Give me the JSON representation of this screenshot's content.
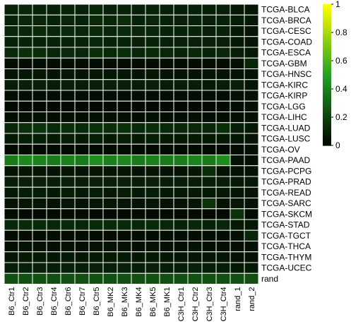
{
  "chart_data": {
    "type": "heatmap",
    "rows": [
      "TCGA-BLCA",
      "TCGA-BRCA",
      "TCGA-CESC",
      "TCGA-COAD",
      "TCGA-ESCA",
      "TCGA-GBM",
      "TCGA-HNSC",
      "TCGA-KIRC",
      "TCGA-KIRP",
      "TCGA-LGG",
      "TCGA-LIHC",
      "TCGA-LUAD",
      "TCGA-LUSC",
      "TCGA-OV",
      "TCGA-PAAD",
      "TCGA-PCPG",
      "TCGA-PRAD",
      "TCGA-READ",
      "TCGA-SARC",
      "TCGA-SKCM",
      "TCGA-STAD",
      "TCGA-TGCT",
      "TCGA-THCA",
      "TCGA-THYM",
      "TCGA-UCEC",
      "rand"
    ],
    "columns": [
      "B6_Ctr1",
      "B6_Ctr2",
      "B6_Ctr3",
      "B6_Ctr4",
      "B6_Ctr6",
      "B6_Ctr7",
      "B6_Ctr5",
      "B6_MK2",
      "B6_MK3",
      "B6_MK4",
      "B6_MK5",
      "B6_MK1",
      "C3H_Ctr1",
      "C3H_Ctr2",
      "C3H_Ctr3",
      "C3H_Ctr4",
      "rand_1",
      "rand_2"
    ],
    "values": [
      [
        0.1,
        0.12,
        0.11,
        0.1,
        0.11,
        0.1,
        0.12,
        0.1,
        0.11,
        0.1,
        0.11,
        0.1,
        0.09,
        0.1,
        0.09,
        0.1,
        0.08,
        0.07
      ],
      [
        0.11,
        0.12,
        0.12,
        0.11,
        0.12,
        0.11,
        0.13,
        0.12,
        0.14,
        0.11,
        0.12,
        0.11,
        0.1,
        0.11,
        0.1,
        0.11,
        0.09,
        0.08
      ],
      [
        0.12,
        0.12,
        0.13,
        0.12,
        0.13,
        0.12,
        0.13,
        0.12,
        0.13,
        0.12,
        0.12,
        0.11,
        0.11,
        0.11,
        0.1,
        0.11,
        0.08,
        0.07
      ],
      [
        0.1,
        0.11,
        0.11,
        0.1,
        0.11,
        0.11,
        0.12,
        0.11,
        0.11,
        0.1,
        0.11,
        0.1,
        0.1,
        0.1,
        0.1,
        0.1,
        0.08,
        0.07
      ],
      [
        0.13,
        0.14,
        0.14,
        0.12,
        0.13,
        0.12,
        0.14,
        0.13,
        0.14,
        0.12,
        0.13,
        0.12,
        0.11,
        0.12,
        0.11,
        0.12,
        0.09,
        0.08
      ],
      [
        0.04,
        0.04,
        0.04,
        0.04,
        0.04,
        0.04,
        0.04,
        0.04,
        0.04,
        0.04,
        0.04,
        0.04,
        0.04,
        0.04,
        0.04,
        0.04,
        0.05,
        0.12
      ],
      [
        0.06,
        0.07,
        0.07,
        0.06,
        0.07,
        0.06,
        0.07,
        0.07,
        0.07,
        0.06,
        0.07,
        0.06,
        0.06,
        0.06,
        0.06,
        0.06,
        0.06,
        0.06
      ],
      [
        0.09,
        0.1,
        0.1,
        0.09,
        0.1,
        0.09,
        0.1,
        0.1,
        0.1,
        0.09,
        0.1,
        0.09,
        0.09,
        0.09,
        0.08,
        0.09,
        0.1,
        0.07
      ],
      [
        0.04,
        0.04,
        0.04,
        0.04,
        0.04,
        0.04,
        0.04,
        0.04,
        0.04,
        0.04,
        0.04,
        0.04,
        0.04,
        0.04,
        0.04,
        0.04,
        0.05,
        0.06
      ],
      [
        0.03,
        0.03,
        0.03,
        0.03,
        0.03,
        0.03,
        0.03,
        0.03,
        0.03,
        0.03,
        0.03,
        0.03,
        0.03,
        0.03,
        0.03,
        0.03,
        0.04,
        0.05
      ],
      [
        0.04,
        0.05,
        0.05,
        0.04,
        0.05,
        0.04,
        0.05,
        0.05,
        0.05,
        0.04,
        0.05,
        0.04,
        0.04,
        0.05,
        0.04,
        0.04,
        0.05,
        0.05
      ],
      [
        0.12,
        0.15,
        0.16,
        0.13,
        0.14,
        0.13,
        0.15,
        0.14,
        0.15,
        0.13,
        0.14,
        0.13,
        0.12,
        0.13,
        0.12,
        0.14,
        0.09,
        0.08
      ],
      [
        0.08,
        0.09,
        0.09,
        0.08,
        0.09,
        0.08,
        0.09,
        0.08,
        0.09,
        0.08,
        0.09,
        0.08,
        0.08,
        0.08,
        0.08,
        0.08,
        0.07,
        0.07
      ],
      [
        0.03,
        0.03,
        0.03,
        0.03,
        0.03,
        0.03,
        0.03,
        0.03,
        0.03,
        0.03,
        0.03,
        0.03,
        0.03,
        0.03,
        0.03,
        0.03,
        0.04,
        0.05
      ],
      [
        0.38,
        0.42,
        0.41,
        0.38,
        0.4,
        0.38,
        0.45,
        0.4,
        0.42,
        0.38,
        0.4,
        0.38,
        0.39,
        0.41,
        0.38,
        0.44,
        0.06,
        0.05
      ],
      [
        0.06,
        0.07,
        0.07,
        0.06,
        0.07,
        0.06,
        0.07,
        0.07,
        0.07,
        0.06,
        0.07,
        0.06,
        0.06,
        0.07,
        0.14,
        0.06,
        0.06,
        0.06
      ],
      [
        0.09,
        0.1,
        0.1,
        0.09,
        0.1,
        0.09,
        0.1,
        0.1,
        0.1,
        0.09,
        0.1,
        0.09,
        0.09,
        0.09,
        0.09,
        0.09,
        0.08,
        0.08
      ],
      [
        0.08,
        0.09,
        0.09,
        0.08,
        0.09,
        0.08,
        0.09,
        0.08,
        0.09,
        0.08,
        0.09,
        0.08,
        0.08,
        0.08,
        0.08,
        0.08,
        0.07,
        0.07
      ],
      [
        0.06,
        0.07,
        0.07,
        0.06,
        0.07,
        0.06,
        0.07,
        0.07,
        0.07,
        0.06,
        0.07,
        0.06,
        0.06,
        0.07,
        0.16,
        0.06,
        0.07,
        0.06
      ],
      [
        0.03,
        0.03,
        0.03,
        0.03,
        0.03,
        0.03,
        0.03,
        0.03,
        0.03,
        0.03,
        0.03,
        0.03,
        0.03,
        0.03,
        0.03,
        0.03,
        0.15,
        0.04
      ],
      [
        0.12,
        0.13,
        0.13,
        0.12,
        0.13,
        0.12,
        0.13,
        0.13,
        0.13,
        0.12,
        0.13,
        0.12,
        0.11,
        0.12,
        0.11,
        0.12,
        0.08,
        0.08
      ],
      [
        0.04,
        0.04,
        0.04,
        0.04,
        0.04,
        0.04,
        0.04,
        0.04,
        0.04,
        0.04,
        0.04,
        0.04,
        0.04,
        0.04,
        0.04,
        0.04,
        0.05,
        0.12
      ],
      [
        0.05,
        0.06,
        0.06,
        0.05,
        0.06,
        0.05,
        0.06,
        0.06,
        0.06,
        0.05,
        0.06,
        0.05,
        0.05,
        0.06,
        0.05,
        0.05,
        0.05,
        0.05
      ],
      [
        0.07,
        0.08,
        0.08,
        0.07,
        0.08,
        0.07,
        0.08,
        0.08,
        0.08,
        0.07,
        0.08,
        0.07,
        0.07,
        0.07,
        0.07,
        0.07,
        0.06,
        0.06
      ],
      [
        0.09,
        0.1,
        0.1,
        0.09,
        0.1,
        0.09,
        0.1,
        0.1,
        0.1,
        0.09,
        0.1,
        0.09,
        0.09,
        0.1,
        0.09,
        0.09,
        0.08,
        0.08
      ],
      [
        0.25,
        0.25,
        0.25,
        0.25,
        0.25,
        0.25,
        0.25,
        0.25,
        0.25,
        0.25,
        0.25,
        0.25,
        0.25,
        0.25,
        0.25,
        0.25,
        0.25,
        0.25
      ]
    ],
    "color_scale": {
      "low": "#000000",
      "mid": "#22a022",
      "high": "#ffff00",
      "range": [
        0,
        1
      ]
    },
    "legend": {
      "position": "right",
      "ticks": [
        0,
        0.2,
        0.4,
        0.6,
        0.8,
        1
      ]
    },
    "grid": true,
    "grid_color": "#ffffff"
  }
}
